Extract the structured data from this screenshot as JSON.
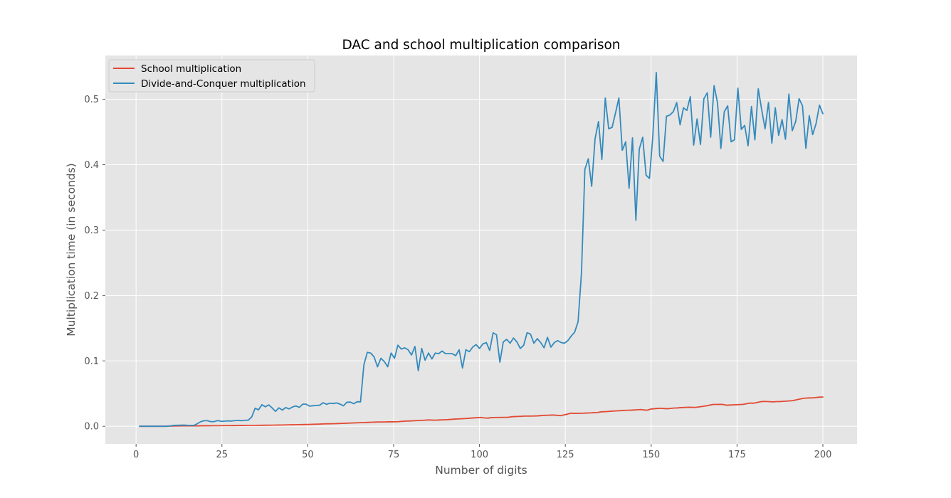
{
  "chart_data": {
    "type": "line",
    "title": "DAC and school multiplication comparison",
    "xlabel": "Number of digits",
    "ylabel": "Multiplication time (in seconds)",
    "xlim": [
      -8.95,
      209.95
    ],
    "ylim": [
      -0.027,
      0.567
    ],
    "xticks": [
      0,
      25,
      50,
      75,
      100,
      125,
      150,
      175,
      200
    ],
    "yticks": [
      0.0,
      0.1,
      0.2,
      0.3,
      0.4,
      0.5
    ],
    "ytick_labels": [
      "0.0",
      "0.1",
      "0.2",
      "0.3",
      "0.4",
      "0.5"
    ],
    "grid": true,
    "legend_position": "top-left",
    "series": [
      {
        "name": "School multiplication",
        "color": "#E24A33",
        "x_start": 1,
        "x_end": 200,
        "values": [
          0.0,
          0.0,
          0.0,
          0.0,
          0.0,
          0.0,
          0.0,
          0.0,
          0.0,
          0.0004,
          0.0004,
          0.0005,
          0.0005,
          0.0006,
          0.0006,
          0.0006,
          0.0007,
          0.0007,
          0.0007,
          0.0008,
          0.0008,
          0.0008,
          0.0009,
          0.0009,
          0.0009,
          0.001,
          0.001,
          0.001,
          0.0011,
          0.0011,
          0.0012,
          0.0012,
          0.0013,
          0.0013,
          0.0014,
          0.0014,
          0.0015,
          0.0015,
          0.0016,
          0.0016,
          0.0017,
          0.0018,
          0.0019,
          0.002,
          0.0021,
          0.0022,
          0.0023,
          0.0024,
          0.0025,
          0.0026,
          0.0027,
          0.0028,
          0.003,
          0.0031,
          0.0033,
          0.0035,
          0.0037,
          0.0038,
          0.0039,
          0.004,
          0.0042,
          0.0044,
          0.0046,
          0.0048,
          0.005,
          0.0052,
          0.0054,
          0.0056,
          0.0058,
          0.006,
          0.0062,
          0.0064,
          0.0066,
          0.0066,
          0.0066,
          0.0068,
          0.0068,
          0.0069,
          0.007,
          0.0075,
          0.0078,
          0.008,
          0.0082,
          0.0085,
          0.0088,
          0.009,
          0.0093,
          0.0097,
          0.0095,
          0.0093,
          0.0095,
          0.0098,
          0.01,
          0.0102,
          0.0106,
          0.011,
          0.0112,
          0.0115,
          0.0118,
          0.0121,
          0.0125,
          0.0129,
          0.0132,
          0.0135,
          0.0127,
          0.0125,
          0.0132,
          0.0134,
          0.0135,
          0.0135,
          0.0137,
          0.0137,
          0.0145,
          0.0148,
          0.015,
          0.0152,
          0.0156,
          0.0156,
          0.0156,
          0.0157,
          0.0159,
          0.0163,
          0.0167,
          0.0168,
          0.0171,
          0.0172,
          0.0166,
          0.0162,
          0.0175,
          0.0185,
          0.02,
          0.0197,
          0.0197,
          0.0199,
          0.02,
          0.0203,
          0.0205,
          0.0208,
          0.021,
          0.022,
          0.0223,
          0.0225,
          0.023,
          0.0233,
          0.0236,
          0.0239,
          0.0242,
          0.0245,
          0.0246,
          0.0249,
          0.0252,
          0.0256,
          0.025,
          0.0245,
          0.0262,
          0.0268,
          0.0272,
          0.0275,
          0.0272,
          0.0268,
          0.0273,
          0.0278,
          0.028,
          0.0284,
          0.0287,
          0.029,
          0.0291,
          0.0288,
          0.0292,
          0.0298,
          0.0305,
          0.0314,
          0.0325,
          0.0334,
          0.0334,
          0.0335,
          0.0333,
          0.0322,
          0.0325,
          0.0328,
          0.033,
          0.0332,
          0.0335,
          0.0345,
          0.0355,
          0.0352,
          0.0362,
          0.0373,
          0.038,
          0.0379,
          0.0376,
          0.0373,
          0.0377,
          0.0378,
          0.0381,
          0.0384,
          0.0388,
          0.0392,
          0.0405,
          0.0415,
          0.0426,
          0.0432,
          0.0434,
          0.0435,
          0.044,
          0.0446,
          0.0447
        ]
      },
      {
        "name": "Divide-and-Conquer multiplication",
        "color": "#348ABD",
        "x_start": 1,
        "x_end": 200,
        "values": [
          0.0,
          0.0,
          0.0,
          0.0,
          0.0,
          0.0,
          0.0,
          0.0,
          0.0,
          0.0004,
          0.0014,
          0.0015,
          0.0016,
          0.0018,
          0.0015,
          0.0014,
          0.0014,
          0.004,
          0.007,
          0.0085,
          0.0085,
          0.007,
          0.0072,
          0.0088,
          0.0075,
          0.0078,
          0.0082,
          0.0079,
          0.0086,
          0.0089,
          0.0085,
          0.0092,
          0.0094,
          0.0143,
          0.0276,
          0.0252,
          0.0329,
          0.0298,
          0.0327,
          0.0281,
          0.0228,
          0.0282,
          0.0248,
          0.0286,
          0.0266,
          0.0295,
          0.0311,
          0.0289,
          0.0338,
          0.0338,
          0.0308,
          0.0314,
          0.0319,
          0.0322,
          0.0361,
          0.0336,
          0.0353,
          0.0348,
          0.0357,
          0.0338,
          0.0313,
          0.0368,
          0.037,
          0.0345,
          0.0375,
          0.0373,
          0.094,
          0.113,
          0.112,
          0.106,
          0.091,
          0.104,
          0.099,
          0.091,
          0.112,
          0.104,
          0.124,
          0.118,
          0.12,
          0.117,
          0.109,
          0.122,
          0.085,
          0.119,
          0.101,
          0.112,
          0.103,
          0.112,
          0.111,
          0.115,
          0.111,
          0.111,
          0.111,
          0.108,
          0.117,
          0.089,
          0.117,
          0.114,
          0.121,
          0.125,
          0.119,
          0.126,
          0.128,
          0.116,
          0.143,
          0.14,
          0.098,
          0.129,
          0.133,
          0.127,
          0.135,
          0.129,
          0.119,
          0.124,
          0.143,
          0.141,
          0.127,
          0.134,
          0.128,
          0.12,
          0.136,
          0.121,
          0.128,
          0.131,
          0.128,
          0.127,
          0.131,
          0.138,
          0.144,
          0.16,
          0.235,
          0.393,
          0.409,
          0.367,
          0.44,
          0.466,
          0.408,
          0.502,
          0.455,
          0.457,
          0.479,
          0.502,
          0.422,
          0.435,
          0.364,
          0.441,
          0.315,
          0.424,
          0.442,
          0.384,
          0.379,
          0.445,
          0.541,
          0.413,
          0.405,
          0.474,
          0.476,
          0.481,
          0.495,
          0.461,
          0.487,
          0.483,
          0.504,
          0.43,
          0.47,
          0.431,
          0.501,
          0.51,
          0.442,
          0.521,
          0.495,
          0.425,
          0.481,
          0.49,
          0.435,
          0.438,
          0.517,
          0.454,
          0.46,
          0.429,
          0.489,
          0.438,
          0.516,
          0.484,
          0.455,
          0.495,
          0.433,
          0.487,
          0.445,
          0.469,
          0.439,
          0.508,
          0.452,
          0.466,
          0.501,
          0.49,
          0.425,
          0.475,
          0.446,
          0.463,
          0.491,
          0.478
        ]
      }
    ]
  }
}
